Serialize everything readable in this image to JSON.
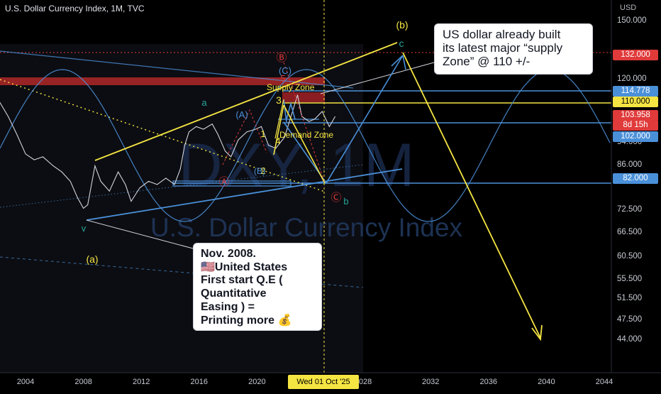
{
  "header": {
    "title": "U.S. Dollar Currency Index, 1M, TVC",
    "currency": "USD"
  },
  "watermark": {
    "symbol": "DXY, 1M",
    "name": "U.S. Dollar Currency Index"
  },
  "notes": {
    "supply_zone_note": "US dollar already built\nits latest major “supply\nZone” @ 110 +/-",
    "qe_note": "Nov. 2008.\n🇺🇸United States\nFirst start Q.E (\nQuantitative\nEasing ) =\nPrinting more 💰"
  },
  "colors": {
    "background": "#000000",
    "price": "#d1d4dc",
    "yellow": "#f5e542",
    "blue": "#4a90d9",
    "red": "#e03a3a",
    "green": "#26a69a",
    "zone_red": "#b02828"
  },
  "chart_data": {
    "type": "line",
    "title": "U.S. Dollar Currency Index, 1M, TVC",
    "xlabel": "",
    "ylabel": "USD",
    "x_ticks": [
      "2004",
      "2008",
      "2012",
      "2016",
      "2020",
      "2028",
      "2032",
      "2036",
      "2040",
      "2044"
    ],
    "x_cursor_label": "Wed 01 Oct '25",
    "y_ticks": [
      "150.000",
      "120.000",
      "94.000",
      "86.000",
      "72.500",
      "66.500",
      "60.500",
      "55.500",
      "51.500",
      "47.500",
      "44.000"
    ],
    "y_scale": "log",
    "ylim": [
      41.5,
      155
    ],
    "price_labels": [
      {
        "text": "132.000",
        "value": 132.0,
        "kind": "level"
      },
      {
        "text": "114.778",
        "value": 114.778,
        "kind": "level"
      },
      {
        "text": "110.000",
        "value": 110.0,
        "kind": "level"
      },
      {
        "text": "103.958",
        "value": 103.958,
        "kind": "last",
        "extra": "8d 15h"
      },
      {
        "text": "102.000",
        "value": 102.0,
        "kind": "level"
      },
      {
        "text": "82.000",
        "value": 82.0,
        "kind": "level"
      }
    ],
    "series": [
      {
        "name": "DXY",
        "x": [
          2001.0,
          2001.6,
          2002.2,
          2002.8,
          2003.4,
          2004.0,
          2004.6,
          2005.2,
          2005.9,
          2006.5,
          2007.1,
          2007.6,
          2008.0,
          2008.3,
          2008.8,
          2009.2,
          2009.8,
          2010.4,
          2010.9,
          2011.3,
          2011.9,
          2012.5,
          2013.1,
          2013.7,
          2014.3,
          2014.7,
          2015.0,
          2015.3,
          2015.8,
          2016.3,
          2016.9,
          2017.3,
          2017.8,
          2018.2,
          2018.7,
          2019.3,
          2019.9,
          2020.3,
          2020.8,
          2021.3,
          2021.9,
          2022.4,
          2022.8,
          2023.1,
          2023.6,
          2024.0,
          2024.5,
          2025.0,
          2025.4
        ],
        "values": [
          118,
          116,
          110,
          104,
          97,
          90,
          88,
          89,
          86,
          84,
          81,
          76,
          73,
          74,
          86,
          81,
          78,
          84,
          80,
          75,
          79,
          81,
          80,
          82,
          80,
          85,
          93,
          98,
          100,
          99,
          101,
          97,
          91,
          89,
          95,
          98,
          99,
          100,
          93,
          92,
          96,
          105,
          113,
          104,
          102,
          103,
          106,
          100,
          104
        ]
      }
    ],
    "annotations": [
      "(b)",
      "c",
      "Ⓑ",
      "5",
      "(C)",
      "Supply Zone",
      "3",
      "(A)",
      "a",
      "1",
      "4",
      "Demand Zone",
      "Ⓐ",
      "2",
      "(B)",
      "Ⓒ",
      "b",
      "v",
      "(a)"
    ]
  }
}
